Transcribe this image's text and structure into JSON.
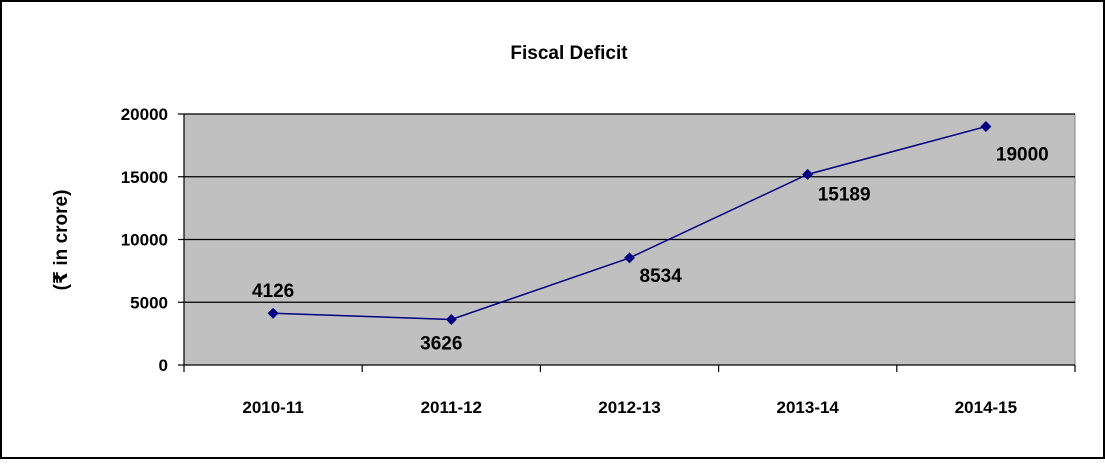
{
  "chart_data": {
    "type": "line",
    "title": "Fiscal Deficit",
    "xlabel": "",
    "ylabel": "(₹ in crore)",
    "categories": [
      "2010-11",
      "2011-12",
      "2012-13",
      "2013-14",
      "2014-15"
    ],
    "series": [
      {
        "values": [
          4126,
          3626,
          8534,
          15189,
          19000
        ],
        "color": "#000080"
      }
    ],
    "data_labels": [
      "4126",
      "3626",
      "8534",
      "15189",
      "19000"
    ],
    "ylim": [
      0,
      20000
    ],
    "yticks": [
      0,
      5000,
      10000,
      15000,
      20000
    ],
    "grid": true,
    "legend": "none",
    "plot_background": "#c0c0c0",
    "marker": "diamond"
  }
}
